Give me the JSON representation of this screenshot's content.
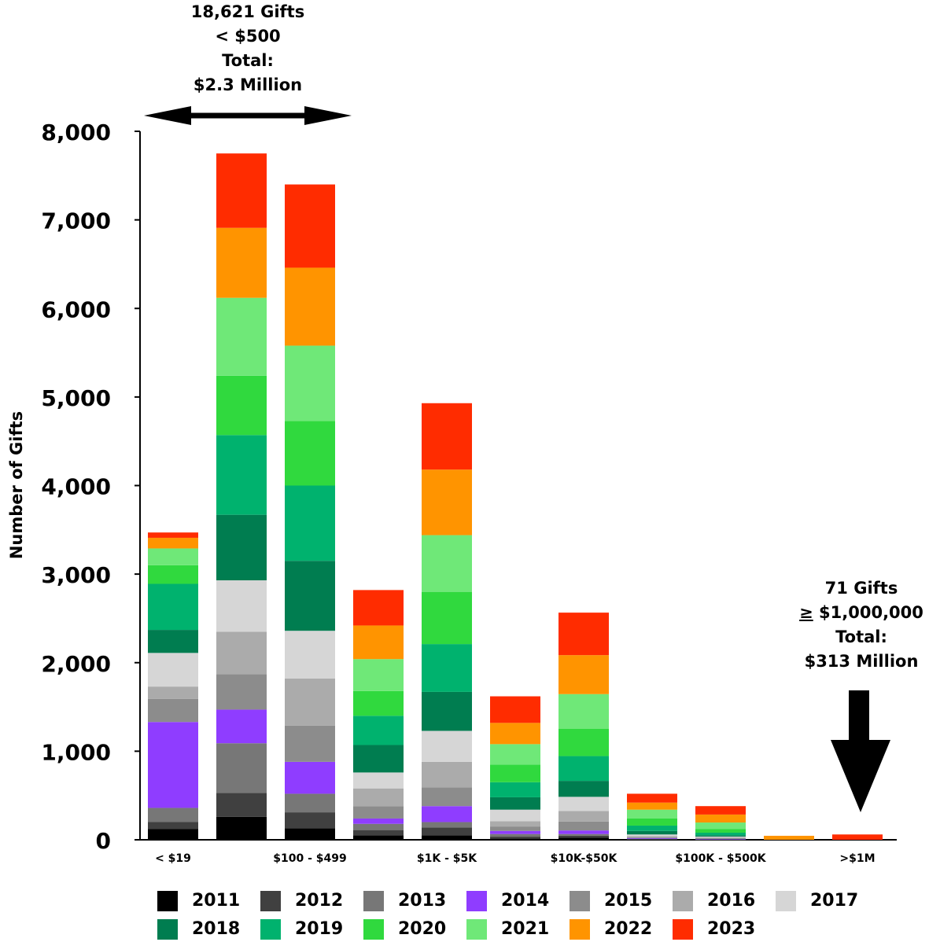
{
  "chart_data": {
    "type": "bar",
    "stacked": true,
    "ylabel": "Number of Gifts",
    "ylim": [
      0,
      8000
    ],
    "yticks": [
      0,
      1000,
      2000,
      3000,
      4000,
      5000,
      6000,
      7000,
      8000
    ],
    "ytick_labels": [
      "0",
      "1,000",
      "2,000",
      "3,000",
      "4,000",
      "5,000",
      "6,000",
      "7,000",
      "8,000"
    ],
    "categories": [
      "< $19",
      "",
      "$100 - $499",
      "",
      "$1K - $5K",
      "",
      "$10K-$50K",
      "",
      "$100K - $500K",
      "",
      ">$1M"
    ],
    "series": [
      {
        "name": "2011",
        "color": "#000000",
        "values": [
          120,
          260,
          130,
          50,
          50,
          15,
          25,
          5,
          3,
          0,
          0
        ]
      },
      {
        "name": "2012",
        "color": "#404040",
        "values": [
          80,
          270,
          180,
          60,
          90,
          20,
          20,
          5,
          3,
          0,
          0
        ]
      },
      {
        "name": "2013",
        "color": "#777777",
        "values": [
          160,
          560,
          210,
          70,
          60,
          30,
          20,
          5,
          4,
          0,
          0
        ]
      },
      {
        "name": "2014",
        "color": "#8f3dff",
        "values": [
          970,
          380,
          360,
          60,
          180,
          35,
          40,
          5,
          3,
          0,
          0
        ]
      },
      {
        "name": "2015",
        "color": "#8c8c8c",
        "values": [
          260,
          400,
          410,
          140,
          210,
          50,
          100,
          10,
          5,
          0,
          0
        ]
      },
      {
        "name": "2016",
        "color": "#ababab",
        "values": [
          140,
          480,
          530,
          200,
          290,
          60,
          120,
          10,
          8,
          0,
          0
        ]
      },
      {
        "name": "2017",
        "color": "#d6d6d6",
        "values": [
          380,
          580,
          540,
          180,
          350,
          130,
          160,
          20,
          10,
          0,
          0
        ]
      },
      {
        "name": "2018",
        "color": "#007d50",
        "values": [
          260,
          740,
          790,
          310,
          440,
          140,
          180,
          40,
          14,
          0,
          0
        ]
      },
      {
        "name": "2019",
        "color": "#00b26e",
        "values": [
          520,
          900,
          850,
          330,
          540,
          170,
          280,
          60,
          30,
          0,
          0
        ]
      },
      {
        "name": "2020",
        "color": "#30d93e",
        "values": [
          210,
          670,
          730,
          280,
          590,
          200,
          310,
          80,
          40,
          0,
          0
        ]
      },
      {
        "name": "2021",
        "color": "#6fe878",
        "values": [
          190,
          880,
          850,
          360,
          640,
          230,
          390,
          100,
          75,
          0,
          0
        ]
      },
      {
        "name": "2022",
        "color": "#ff9400",
        "values": [
          120,
          790,
          880,
          380,
          740,
          240,
          440,
          80,
          90,
          45,
          0
        ]
      },
      {
        "name": "2023",
        "color": "#ff2c00",
        "values": [
          60,
          840,
          940,
          400,
          750,
          300,
          480,
          100,
          95,
          0,
          60
        ]
      }
    ]
  },
  "annotations": {
    "left": {
      "line1": "18,621 Gifts",
      "line2": "< $500",
      "line3": "Total:",
      "line4": "$2.3 Million"
    },
    "right": {
      "line1": "71 Gifts",
      "line2_symbol": "≥",
      "line2_value": " $1,000,000",
      "line3": "Total:",
      "line4": "$313 Million"
    }
  }
}
